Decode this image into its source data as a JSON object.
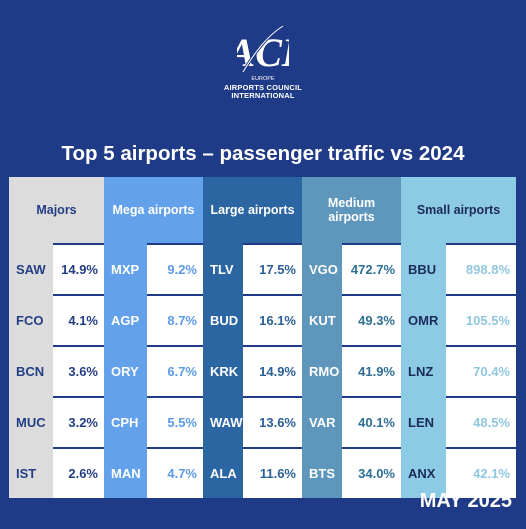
{
  "logo": {
    "mark": "ACI",
    "region": "EUROPE",
    "line1": "AIRPORTS COUNCIL",
    "line2": "INTERNATIONAL"
  },
  "title": "Top 5 airports – passenger traffic vs 2024",
  "columns": [
    {
      "header": "Majors",
      "rows": [
        {
          "code": "SAW",
          "value": "14.9%"
        },
        {
          "code": "FCO",
          "value": "4.1%"
        },
        {
          "code": "BCN",
          "value": "3.6%"
        },
        {
          "code": "MUC",
          "value": "3.2%"
        },
        {
          "code": "IST",
          "value": "2.6%"
        }
      ]
    },
    {
      "header": "Mega airports",
      "rows": [
        {
          "code": "MXP",
          "value": "9.2%"
        },
        {
          "code": "AGP",
          "value": "8.7%"
        },
        {
          "code": "ORY",
          "value": "6.7%"
        },
        {
          "code": "CPH",
          "value": "5.5%"
        },
        {
          "code": "MAN",
          "value": "4.7%"
        }
      ]
    },
    {
      "header": "Large airports",
      "rows": [
        {
          "code": "TLV",
          "value": "17.5%"
        },
        {
          "code": "BUD",
          "value": "16.1%"
        },
        {
          "code": "KRK",
          "value": "14.9%"
        },
        {
          "code": "WAW",
          "value": "13.6%"
        },
        {
          "code": "ALA",
          "value": "11.6%"
        }
      ]
    },
    {
      "header_line1": "Medium",
      "header_line2": "airports",
      "rows": [
        {
          "code": "VGO",
          "value": "472.7%"
        },
        {
          "code": "KUT",
          "value": "49.3%"
        },
        {
          "code": "RMO",
          "value": "41.9%"
        },
        {
          "code": "VAR",
          "value": "40.1%"
        },
        {
          "code": "BTS",
          "value": "34.0%"
        }
      ]
    },
    {
      "header": "Small airports",
      "rows": [
        {
          "code": "BBU",
          "value": "898.8%"
        },
        {
          "code": "OMR",
          "value": "105.5%"
        },
        {
          "code": "LNZ",
          "value": "70.4%"
        },
        {
          "code": "LEN",
          "value": "48.5%"
        },
        {
          "code": "ANX",
          "value": "42.1%"
        }
      ]
    }
  ],
  "date": "MAY 2025"
}
